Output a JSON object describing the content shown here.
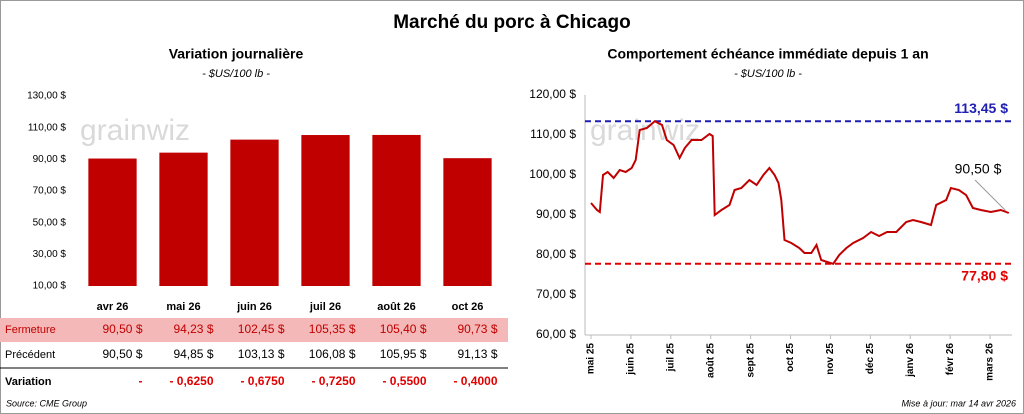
{
  "title": "Marché du porc à Chicago",
  "watermark": "grainwiz",
  "source": "Source: CME Group",
  "updated": "Mise à jour: mar 14 avr 2026",
  "chart_data": [
    {
      "type": "bar",
      "title": "Variation journalière",
      "subtitle": "- $US/100 lb -",
      "categories": [
        "avr 26",
        "mai 26",
        "juin 26",
        "juil 26",
        "août 26",
        "oct 26"
      ],
      "values": [
        90.5,
        94.23,
        102.45,
        105.35,
        105.4,
        90.73
      ],
      "color": "#c00000",
      "grid": false,
      "ylim": [
        10,
        130
      ],
      "yticks": [
        {
          "value": 10,
          "label": "10,00 $"
        },
        {
          "value": 30,
          "label": "30,00 $"
        },
        {
          "value": 50,
          "label": "50,00 $"
        },
        {
          "value": 70,
          "label": "70,00 $"
        },
        {
          "value": 90,
          "label": "90,00 $"
        },
        {
          "value": 110,
          "label": "110,00 $"
        },
        {
          "value": 130,
          "label": "130,00 $"
        }
      ]
    },
    {
      "type": "line",
      "title": "Comportement échéance immédiate depuis 1 an",
      "subtitle": "- $US/100 lb -",
      "grid": false,
      "xlim": [
        -0.15,
        10.55
      ],
      "xticks": [
        {
          "value": 0,
          "label": "mai 25"
        },
        {
          "value": 1,
          "label": "juin 25"
        },
        {
          "value": 2,
          "label": "juil 25"
        },
        {
          "value": 3,
          "label": "août 25"
        },
        {
          "value": 4,
          "label": "sept 25"
        },
        {
          "value": 5,
          "label": "oct 25"
        },
        {
          "value": 6,
          "label": "nov 25"
        },
        {
          "value": 7,
          "label": "déc 25"
        },
        {
          "value": 8,
          "label": "janv 26"
        },
        {
          "value": 9,
          "label": "févr 26"
        },
        {
          "value": 10,
          "label": "mars 26"
        }
      ],
      "ylim": [
        60,
        120
      ],
      "yticks": [
        {
          "value": 60,
          "label": "60,00 $"
        },
        {
          "value": 70,
          "label": "70,00 $"
        },
        {
          "value": 80,
          "label": "80,00 $"
        },
        {
          "value": 90,
          "label": "90,00 $"
        },
        {
          "value": 100,
          "label": "100,00 $"
        },
        {
          "value": 110,
          "label": "110,00 $"
        },
        {
          "value": 120,
          "label": "120,00 $"
        }
      ],
      "series": [
        {
          "color": "#c00000",
          "x": [
            0,
            0.15,
            0.22,
            0.3,
            0.42,
            0.57,
            0.72,
            0.87,
            1.02,
            1.12,
            1.22,
            1.4,
            1.6,
            1.78,
            1.9,
            2.07,
            2.22,
            2.35,
            2.52,
            2.77,
            2.97,
            3.05,
            3.1,
            3.27,
            3.47,
            3.6,
            3.77,
            3.97,
            4.15,
            4.32,
            4.47,
            4.6,
            4.7,
            4.77,
            4.85,
            5.02,
            5.22,
            5.35,
            5.52,
            5.65,
            5.77,
            5.92,
            6.07,
            6.22,
            6.4,
            6.57,
            6.82,
            7.02,
            7.22,
            7.42,
            7.65,
            7.9,
            8.07,
            8.27,
            8.52,
            8.65,
            8.9,
            9.02,
            9.22,
            9.4,
            9.57,
            9.77,
            10.02,
            10.27,
            10.47
          ],
          "values": [
            93.0,
            91.25,
            90.75,
            100.0,
            100.75,
            99.25,
            101.25,
            100.75,
            101.75,
            103.75,
            111.25,
            111.75,
            113.45,
            112.5,
            108.75,
            107.5,
            104.25,
            106.75,
            108.75,
            108.75,
            110.25,
            109.75,
            90.0,
            91.25,
            92.5,
            96.25,
            96.75,
            98.75,
            97.5,
            100.0,
            101.75,
            100.0,
            98.0,
            93.75,
            83.75,
            83.0,
            81.75,
            80.5,
            80.5,
            82.5,
            78.75,
            78.25,
            77.8,
            80.0,
            81.75,
            83.0,
            84.25,
            85.75,
            84.75,
            85.75,
            85.75,
            88.25,
            88.75,
            88.25,
            87.5,
            92.5,
            93.75,
            96.75,
            96.25,
            95.0,
            91.75,
            91.25,
            90.75,
            91.25,
            90.5
          ]
        }
      ],
      "reference_lines": [
        {
          "value": 113.45,
          "label": "113,45 $",
          "color": "#1f1fb4"
        },
        {
          "value": 77.8,
          "label": "77,80 $",
          "color": "#e00000"
        }
      ],
      "last_label": {
        "value": 90.5,
        "label": "90,50 $"
      }
    }
  ],
  "table": {
    "rows": [
      {
        "label": "Fermeture",
        "cells": [
          "90,50 $",
          "94,23 $",
          "102,45 $",
          "105,35 $",
          "105,40 $",
          "90,73 $"
        ]
      },
      {
        "label": "Précédent",
        "cells": [
          "90,50 $",
          "94,85 $",
          "103,13 $",
          "106,08 $",
          "105,95 $",
          "91,13 $"
        ]
      },
      {
        "label": "Variation",
        "cells": [
          "-",
          "- 0,6250",
          "- 0,6750",
          "- 0,7250",
          "- 0,5500",
          "- 0,4000"
        ]
      }
    ]
  }
}
